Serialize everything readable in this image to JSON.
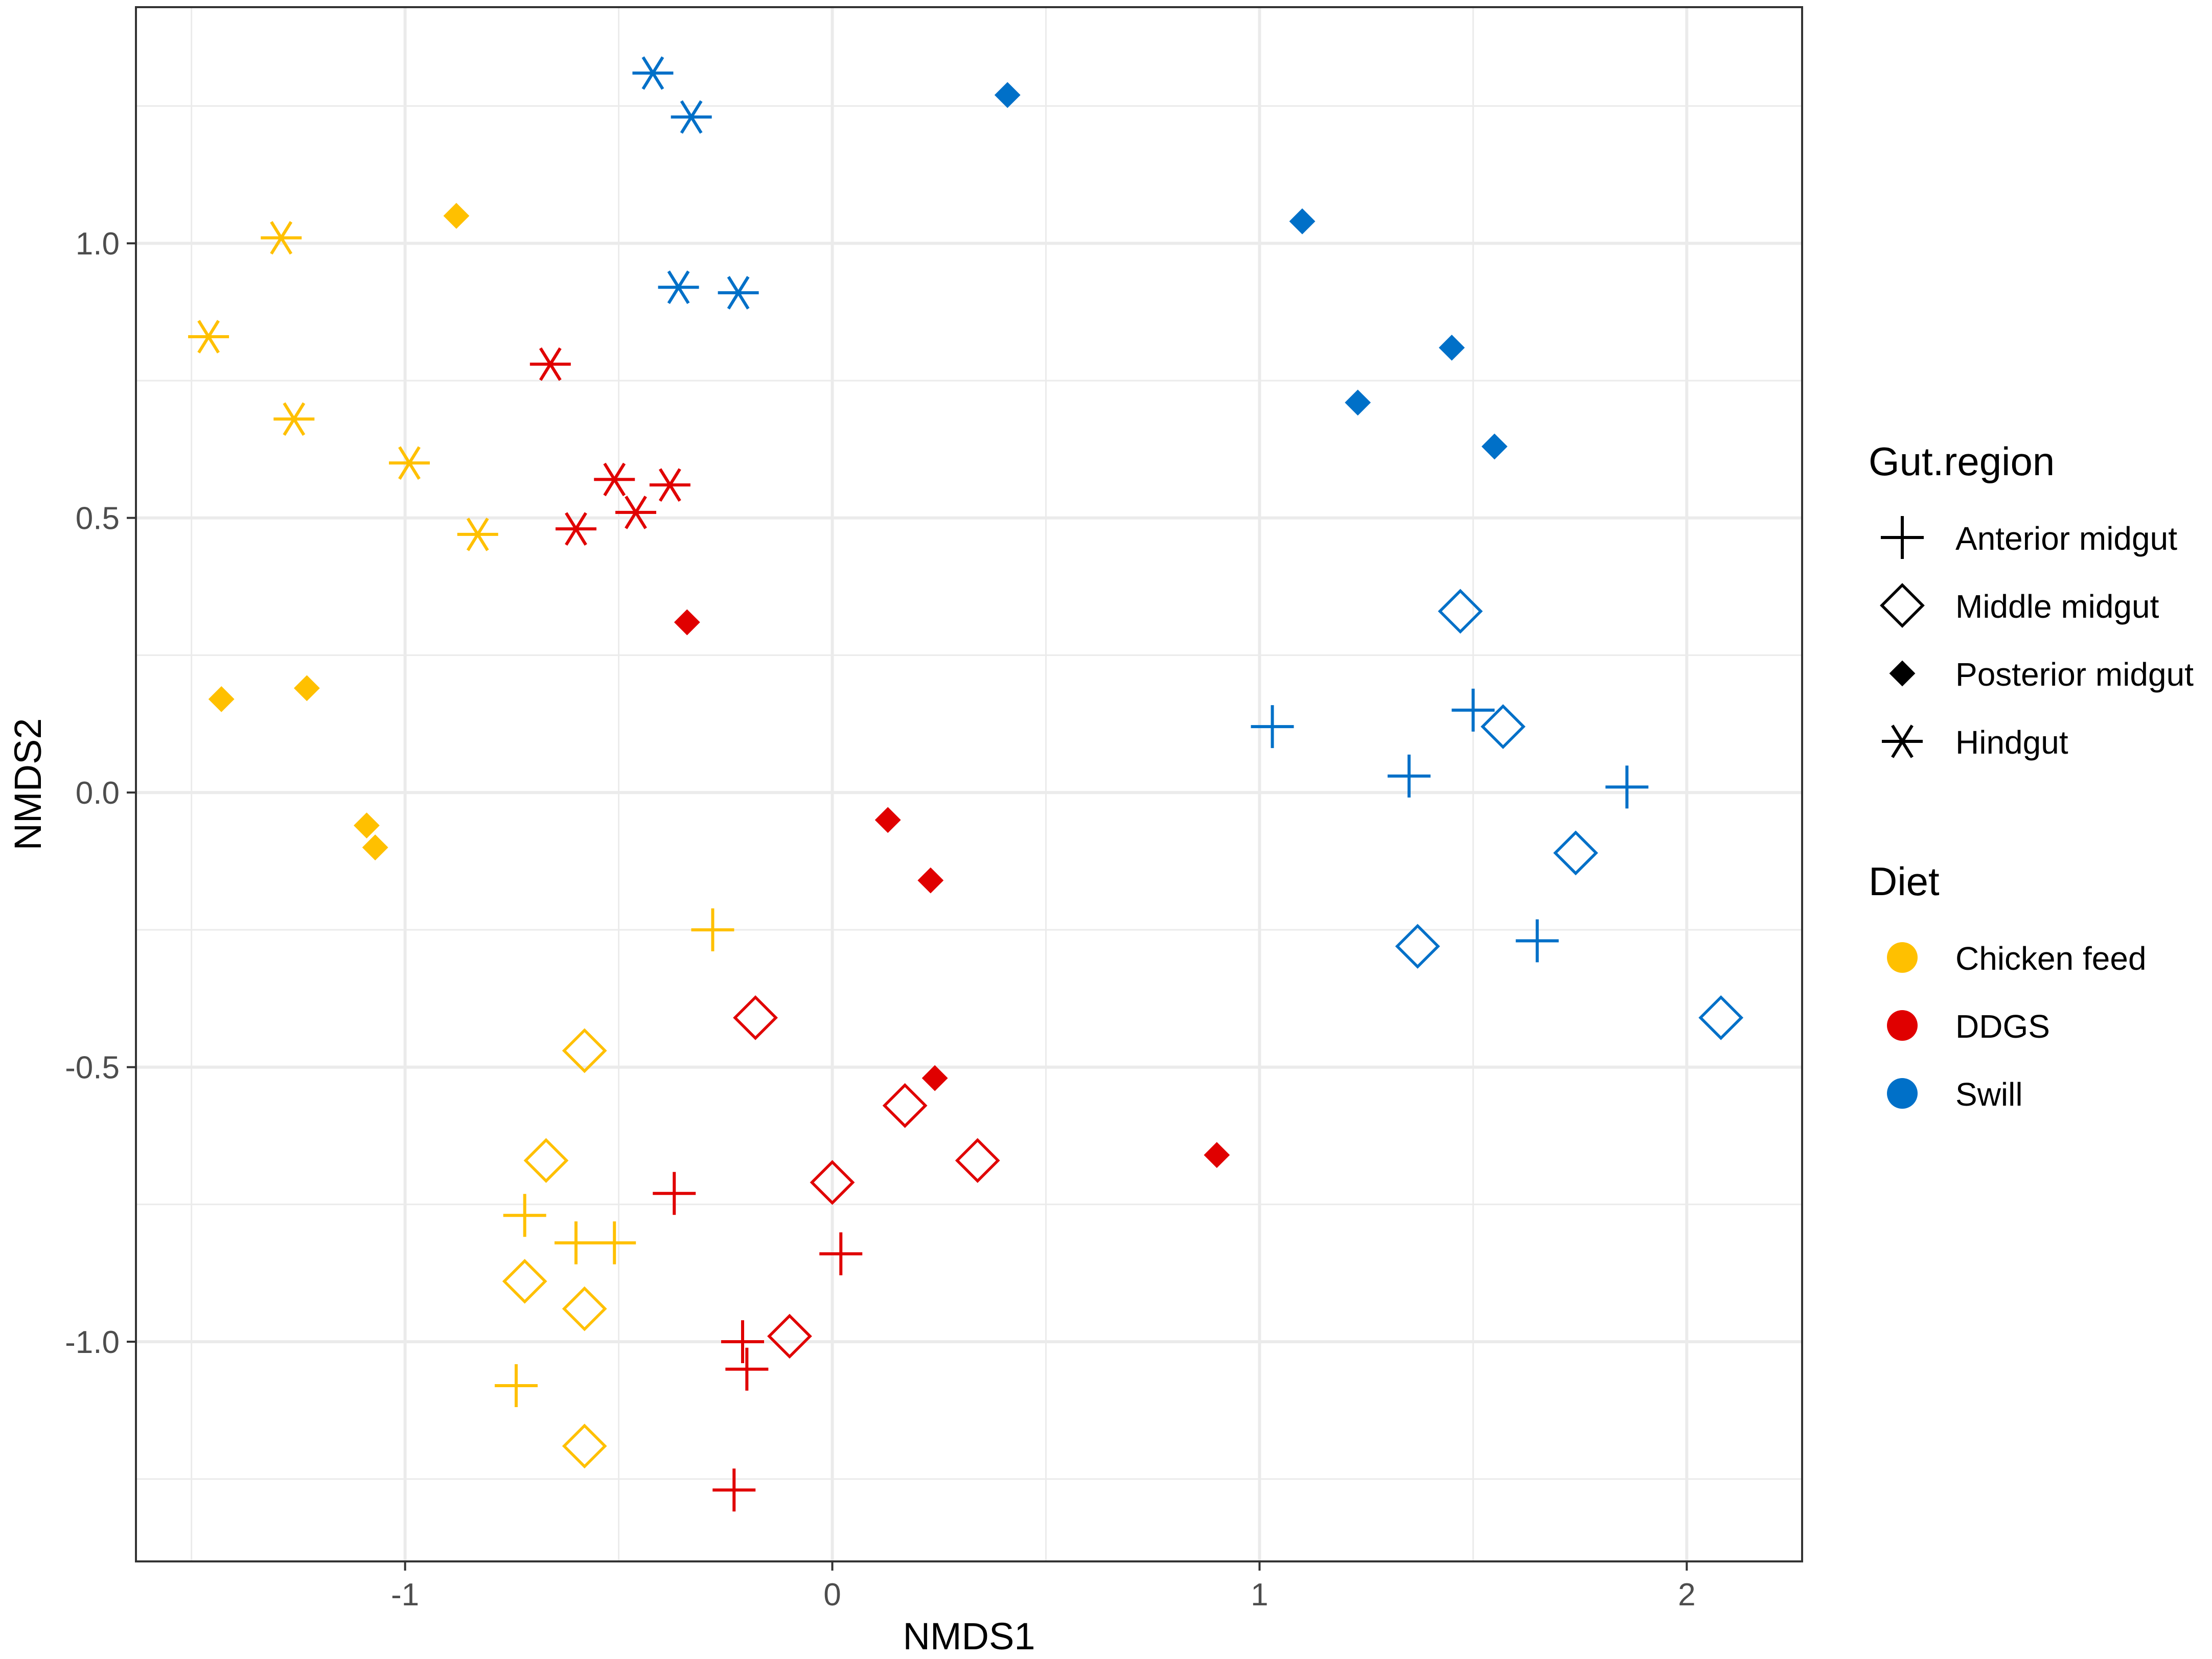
{
  "colors": {
    "Chicken feed": "#FFC000",
    "DDGS": "#E00000",
    "Swill": "#0070C8",
    "legend_key": "#000000",
    "grid": "#EBEBEB",
    "axis_text": "#4D4D4D"
  },
  "chart_data": {
    "type": "scatter",
    "title": "",
    "xlabel": "NMDS1",
    "ylabel": "NMDS2",
    "xlim": [
      -1.63,
      2.27
    ],
    "ylim": [
      -1.4,
      1.43
    ],
    "x_ticks": [
      -1,
      0,
      1,
      2
    ],
    "x_tick_labels": [
      "-1",
      "0",
      "1",
      "2"
    ],
    "y_ticks": [
      -1.0,
      -0.5,
      0.0,
      0.5,
      1.0
    ],
    "y_tick_labels": [
      "-1.0",
      "-0.5",
      "0.0",
      "0.5",
      "1.0"
    ],
    "grid": true,
    "legend_position": "right",
    "legend": {
      "shape_title": "Gut.region",
      "shapes": [
        {
          "label": "Anterior midgut",
          "shape": "plus"
        },
        {
          "label": "Middle midgut",
          "shape": "diamond-open"
        },
        {
          "label": "Posterior midgut",
          "shape": "diamond-filled"
        },
        {
          "label": "Hindgut",
          "shape": "asterisk"
        }
      ],
      "color_title": "Diet",
      "colors": [
        {
          "label": "Chicken feed"
        },
        {
          "label": "DDGS"
        },
        {
          "label": "Swill"
        }
      ]
    },
    "series": [
      {
        "name": "Chicken feed / Hindgut",
        "diet": "Chicken feed",
        "shape": "asterisk",
        "points": [
          [
            -1.29,
            1.01
          ],
          [
            -1.46,
            0.83
          ],
          [
            -1.26,
            0.68
          ],
          [
            -0.99,
            0.6
          ],
          [
            -0.83,
            0.47
          ]
        ]
      },
      {
        "name": "Chicken feed / Posterior midgut",
        "diet": "Chicken feed",
        "shape": "diamond-filled",
        "points": [
          [
            -0.88,
            1.05
          ],
          [
            -1.43,
            0.17
          ],
          [
            -1.23,
            0.19
          ],
          [
            -1.09,
            -0.06
          ],
          [
            -1.07,
            -0.1
          ]
        ]
      },
      {
        "name": "Chicken feed / Anterior midgut",
        "diet": "Chicken feed",
        "shape": "plus",
        "points": [
          [
            -0.28,
            -0.25
          ],
          [
            -0.72,
            -0.77
          ],
          [
            -0.6,
            -0.82
          ],
          [
            -0.51,
            -0.82
          ],
          [
            -0.74,
            -1.08
          ]
        ]
      },
      {
        "name": "Chicken feed / Middle midgut",
        "diet": "Chicken feed",
        "shape": "diamond-open",
        "points": [
          [
            -0.58,
            -0.47
          ],
          [
            -0.67,
            -0.67
          ],
          [
            -0.72,
            -0.89
          ],
          [
            -0.58,
            -0.94
          ],
          [
            -0.58,
            -1.19
          ]
        ]
      },
      {
        "name": "DDGS / Hindgut",
        "diet": "DDGS",
        "shape": "asterisk",
        "points": [
          [
            -0.66,
            0.78
          ],
          [
            -0.51,
            0.57
          ],
          [
            -0.38,
            0.56
          ],
          [
            -0.46,
            0.51
          ],
          [
            -0.6,
            0.48
          ]
        ]
      },
      {
        "name": "DDGS / Posterior midgut",
        "diet": "DDGS",
        "shape": "diamond-filled",
        "points": [
          [
            -0.34,
            0.31
          ],
          [
            0.13,
            -0.05
          ],
          [
            0.23,
            -0.16
          ],
          [
            0.24,
            -0.52
          ],
          [
            0.9,
            -0.66
          ]
        ]
      },
      {
        "name": "DDGS / Anterior midgut",
        "diet": "DDGS",
        "shape": "plus",
        "points": [
          [
            -0.37,
            -0.73
          ],
          [
            0.02,
            -0.84
          ],
          [
            -0.21,
            -1.0
          ],
          [
            -0.2,
            -1.05
          ],
          [
            -0.23,
            -1.27
          ]
        ]
      },
      {
        "name": "DDGS / Middle midgut",
        "diet": "DDGS",
        "shape": "diamond-open",
        "points": [
          [
            -0.18,
            -0.41
          ],
          [
            0.17,
            -0.57
          ],
          [
            0.34,
            -0.67
          ],
          [
            0.0,
            -0.71
          ],
          [
            -0.1,
            -0.99
          ]
        ]
      },
      {
        "name": "Swill / Hindgut",
        "diet": "Swill",
        "shape": "asterisk",
        "points": [
          [
            -0.42,
            1.31
          ],
          [
            -0.33,
            1.23
          ],
          [
            -0.36,
            0.92
          ],
          [
            -0.22,
            0.91
          ]
        ]
      },
      {
        "name": "Swill / Posterior midgut",
        "diet": "Swill",
        "shape": "diamond-filled",
        "points": [
          [
            0.41,
            1.27
          ],
          [
            1.1,
            1.04
          ],
          [
            1.45,
            0.81
          ],
          [
            1.23,
            0.71
          ],
          [
            1.55,
            0.63
          ]
        ]
      },
      {
        "name": "Swill / Anterior midgut",
        "diet": "Swill",
        "shape": "plus",
        "points": [
          [
            1.03,
            0.12
          ],
          [
            1.5,
            0.15
          ],
          [
            1.35,
            0.03
          ],
          [
            1.86,
            0.01
          ],
          [
            1.65,
            -0.27
          ]
        ]
      },
      {
        "name": "Swill / Middle midgut",
        "diet": "Swill",
        "shape": "diamond-open",
        "points": [
          [
            1.47,
            0.33
          ],
          [
            1.57,
            0.12
          ],
          [
            1.74,
            -0.11
          ],
          [
            1.37,
            -0.28
          ],
          [
            2.08,
            -0.41
          ]
        ]
      }
    ]
  }
}
